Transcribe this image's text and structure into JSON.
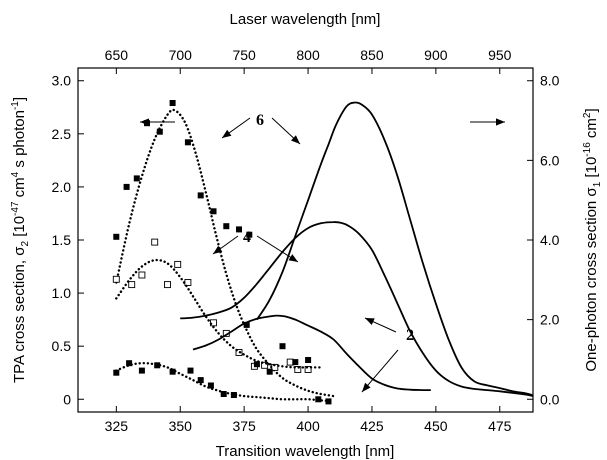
{
  "chart_data": {
    "type": "scatter",
    "xlabel": "Transition wavelength [nm]",
    "xlabel_top": "Laser wavelength [nm]",
    "ylabel_left_parts": {
      "pre": "TPA cross section, σ",
      "sub": "2",
      "mid1": " [10",
      "sup1": "-47",
      "mid2": " cm",
      "sup2": "4",
      "mid3": " s photon",
      "sup3": "-1",
      "post": "]"
    },
    "ylabel_right_parts": {
      "pre": "One-photon cross section σ",
      "sub": "1",
      "mid1": " [10",
      "sup1": "-16",
      "mid2": " cm",
      "sup2": "2",
      "post": "]"
    },
    "x_range": [
      310,
      488
    ],
    "y_left_range": [
      -0.12,
      3.12
    ],
    "y_right_range": [
      -0.32,
      8.32
    ],
    "x_ticks": [
      325,
      350,
      375,
      400,
      425,
      450,
      475
    ],
    "x_tick_labels": [
      "325",
      "350",
      "375",
      "400",
      "425",
      "450",
      "475"
    ],
    "x_top_ticks": [
      650,
      700,
      750,
      800,
      850,
      900,
      950
    ],
    "x_top_tick_labels": [
      "650",
      "700",
      "750",
      "800",
      "850",
      "900",
      "950"
    ],
    "y_left_ticks": [
      0,
      0.5,
      1.0,
      1.5,
      2.0,
      2.5,
      3.0
    ],
    "y_left_tick_labels": [
      "0",
      "0.5",
      "1.0",
      "1.5",
      "2.0",
      "2.5",
      "3.0"
    ],
    "y_right_ticks": [
      0,
      2,
      4,
      6,
      8
    ],
    "y_right_tick_labels": [
      "0.0",
      "2.0",
      "4.0",
      "6.0",
      "8.0"
    ],
    "series": [
      {
        "label": "6",
        "axis": "left",
        "kind": "points",
        "marker": "filled-square",
        "x": [
          325,
          329,
          333,
          337,
          342,
          347,
          353,
          358,
          363,
          368,
          373,
          377
        ],
        "y": [
          1.53,
          2.0,
          2.08,
          2.6,
          2.52,
          2.79,
          2.42,
          1.92,
          1.77,
          1.63,
          1.6,
          1.55
        ]
      },
      {
        "label": "6",
        "axis": "left",
        "kind": "fit-dotted",
        "x": [
          325,
          330,
          335,
          340,
          345,
          348,
          352,
          356,
          360,
          364,
          368,
          372,
          376,
          380,
          385,
          390,
          395,
          400,
          405,
          410
        ],
        "y": [
          1.1,
          1.65,
          2.1,
          2.45,
          2.68,
          2.72,
          2.6,
          2.32,
          1.95,
          1.55,
          1.18,
          0.88,
          0.65,
          0.47,
          0.32,
          0.2,
          0.13,
          0.08,
          0.05,
          0.03
        ]
      },
      {
        "label": "4",
        "axis": "left",
        "kind": "points",
        "marker": "open-square",
        "x": [
          325,
          331,
          335,
          340,
          345,
          349,
          353,
          363,
          368,
          373,
          379,
          383,
          387,
          393,
          396,
          400
        ],
        "y": [
          1.13,
          1.08,
          1.17,
          1.48,
          1.08,
          1.27,
          1.1,
          0.72,
          0.62,
          0.44,
          0.31,
          0.32,
          0.3,
          0.35,
          0.28,
          0.28
        ]
      },
      {
        "label": "4",
        "axis": "left",
        "kind": "fit-dotted",
        "x": [
          325,
          330,
          335,
          340,
          345,
          350,
          355,
          360,
          365,
          370,
          375,
          380,
          385,
          390,
          395,
          400,
          405
        ],
        "y": [
          0.95,
          1.12,
          1.25,
          1.31,
          1.28,
          1.15,
          0.97,
          0.78,
          0.62,
          0.5,
          0.42,
          0.36,
          0.33,
          0.31,
          0.3,
          0.3,
          0.3
        ]
      },
      {
        "label": "2",
        "axis": "left",
        "kind": "points",
        "marker": "filled-square",
        "x": [
          325,
          330,
          335,
          341,
          347,
          354,
          358,
          362,
          367,
          371,
          376,
          380,
          385,
          390,
          395,
          400,
          404,
          408
        ],
        "y": [
          0.25,
          0.34,
          0.27,
          0.32,
          0.26,
          0.27,
          0.18,
          0.13,
          0.05,
          0.04,
          0.7,
          0.33,
          0.26,
          0.5,
          0.35,
          0.37,
          0.0,
          -0.02
        ]
      },
      {
        "label": "2",
        "axis": "left",
        "kind": "fit-dotted",
        "x": [
          325,
          330,
          335,
          340,
          345,
          350,
          355,
          360,
          365,
          370,
          375,
          380,
          385,
          390,
          395,
          400,
          405,
          410
        ],
        "y": [
          0.27,
          0.32,
          0.34,
          0.33,
          0.3,
          0.24,
          0.18,
          0.12,
          0.08,
          0.05,
          0.03,
          0.02,
          0.01,
          0.0,
          0.0,
          0.0,
          -0.01,
          -0.02
        ]
      },
      {
        "label": "6",
        "axis": "right",
        "kind": "line",
        "x": [
          380,
          385,
          390,
          395,
          400,
          405,
          408,
          411,
          415,
          418,
          421,
          425,
          430,
          435,
          440,
          445,
          450,
          455,
          460,
          465,
          470,
          475,
          480,
          485,
          488
        ],
        "y": [
          2.0,
          2.5,
          3.2,
          4.1,
          5.0,
          5.9,
          6.4,
          6.9,
          7.35,
          7.45,
          7.4,
          7.15,
          6.5,
          5.6,
          4.5,
          3.4,
          2.4,
          1.5,
          0.8,
          0.45,
          0.35,
          0.28,
          0.2,
          0.15,
          0.1
        ]
      },
      {
        "label": "4",
        "axis": "right",
        "kind": "line",
        "x": [
          350,
          355,
          360,
          365,
          370,
          375,
          380,
          385,
          390,
          395,
          400,
          405,
          410,
          413,
          416,
          420,
          425,
          430,
          435,
          440,
          445,
          450,
          455,
          460,
          465,
          470,
          475,
          480,
          485,
          488
        ],
        "y": [
          2.03,
          2.05,
          2.1,
          2.18,
          2.3,
          2.55,
          2.9,
          3.3,
          3.7,
          4.05,
          4.3,
          4.42,
          4.45,
          4.43,
          4.35,
          4.15,
          3.75,
          3.1,
          2.4,
          1.7,
          1.15,
          0.72,
          0.46,
          0.32,
          0.26,
          0.23,
          0.2,
          0.16,
          0.12,
          0.08
        ]
      },
      {
        "label": "2",
        "axis": "right",
        "kind": "line",
        "x": [
          355,
          360,
          365,
          370,
          375,
          380,
          385,
          388,
          391,
          395,
          400,
          405,
          410,
          415,
          420,
          425,
          430,
          435,
          440,
          445,
          448
        ],
        "y": [
          1.25,
          1.35,
          1.5,
          1.7,
          1.9,
          2.02,
          2.08,
          2.1,
          2.08,
          2.0,
          1.85,
          1.7,
          1.5,
          1.15,
          0.82,
          0.52,
          0.36,
          0.27,
          0.24,
          0.23,
          0.23
        ]
      }
    ],
    "annotations": [
      {
        "text": "6"
      },
      {
        "text": "4"
      },
      {
        "text": "2"
      }
    ]
  }
}
